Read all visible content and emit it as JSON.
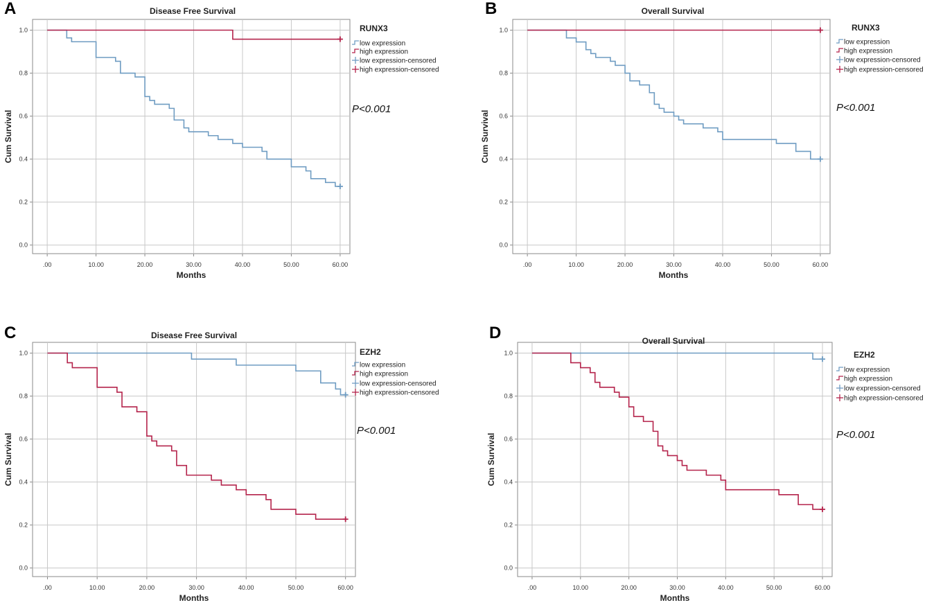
{
  "figure": {
    "axis": {
      "xticks": [
        0,
        10,
        20,
        30,
        40,
        50,
        60
      ],
      "xtick_labels": [
        ".00",
        "10.00",
        "20.00",
        "30.00",
        "40.00",
        "50.00",
        "60.00"
      ],
      "yticks": [
        0,
        0.2,
        0.4,
        0.6,
        0.8,
        1.0
      ],
      "ytick_labels": [
        "0.0",
        "0.2",
        "0.4",
        "0.6",
        "0.8",
        "1.0"
      ],
      "xlabel": "Months",
      "ylabel": "Cum Survival",
      "xlim": [
        -3,
        62
      ],
      "ylim": [
        -0.04,
        1.05
      ]
    },
    "legend_labels": [
      "low expression",
      "high expression",
      "low expression-censored",
      "high expression-censored"
    ],
    "colors": {
      "low": "#6f9cc2",
      "high": "#b4234b",
      "grid": "#c8c8c8",
      "frame": "#8a8a8a"
    }
  },
  "chart_data": [
    {
      "type": "line",
      "panel_letter": "A",
      "title": "Disease Free Survival",
      "legend_title": "RUNX3",
      "pvalue": "P<0.001",
      "xlabel": "Months",
      "ylabel": "Cum Survival",
      "series": [
        {
          "name": "low expression",
          "steps": [
            [
              0,
              1.0
            ],
            [
              4,
              0.964
            ],
            [
              5,
              0.946
            ],
            [
              10,
              0.873
            ],
            [
              14,
              0.855
            ],
            [
              15,
              0.8
            ],
            [
              18,
              0.782
            ],
            [
              20,
              0.691
            ],
            [
              21,
              0.673
            ],
            [
              22,
              0.655
            ],
            [
              25,
              0.636
            ],
            [
              26,
              0.582
            ],
            [
              28,
              0.545
            ],
            [
              29,
              0.527
            ],
            [
              33,
              0.509
            ],
            [
              35,
              0.491
            ],
            [
              38,
              0.473
            ],
            [
              40,
              0.455
            ],
            [
              44,
              0.436
            ],
            [
              45,
              0.4
            ],
            [
              50,
              0.364
            ],
            [
              53,
              0.345
            ],
            [
              54,
              0.309
            ],
            [
              57,
              0.291
            ],
            [
              59,
              0.273
            ],
            [
              60,
              0.273
            ]
          ],
          "censored": [
            [
              60,
              0.273
            ]
          ]
        },
        {
          "name": "high expression",
          "steps": [
            [
              0,
              1.0
            ],
            [
              38,
              0.958
            ],
            [
              60,
              0.958
            ]
          ],
          "censored": [
            [
              60,
              0.958
            ]
          ]
        }
      ]
    },
    {
      "type": "line",
      "panel_letter": "B",
      "title": "Overall Survival",
      "legend_title": "RUNX3",
      "pvalue": "P<0.001",
      "xlabel": "Months",
      "ylabel": "Cum Survival",
      "series": [
        {
          "name": "low expression",
          "steps": [
            [
              0,
              1.0
            ],
            [
              8,
              0.964
            ],
            [
              10,
              0.945
            ],
            [
              12,
              0.909
            ],
            [
              13,
              0.891
            ],
            [
              14,
              0.873
            ],
            [
              17,
              0.855
            ],
            [
              18,
              0.836
            ],
            [
              20,
              0.8
            ],
            [
              21,
              0.764
            ],
            [
              23,
              0.745
            ],
            [
              25,
              0.709
            ],
            [
              26,
              0.655
            ],
            [
              27,
              0.636
            ],
            [
              28,
              0.618
            ],
            [
              30,
              0.6
            ],
            [
              31,
              0.582
            ],
            [
              32,
              0.564
            ],
            [
              36,
              0.545
            ],
            [
              39,
              0.527
            ],
            [
              40,
              0.491
            ],
            [
              51,
              0.473
            ],
            [
              55,
              0.436
            ],
            [
              58,
              0.4
            ],
            [
              60,
              0.4
            ]
          ],
          "censored": [
            [
              60,
              0.4
            ]
          ]
        },
        {
          "name": "high expression",
          "steps": [
            [
              0,
              1.0
            ],
            [
              60,
              1.0
            ]
          ],
          "censored": [
            [
              60,
              1.0
            ]
          ]
        }
      ]
    },
    {
      "type": "line",
      "panel_letter": "C",
      "title": "Disease Free Survival",
      "legend_title": "EZH2",
      "pvalue": "P<0.001",
      "xlabel": "Months",
      "ylabel": "Cum Survival",
      "series": [
        {
          "name": "low expression",
          "steps": [
            [
              0,
              1.0
            ],
            [
              29,
              0.972
            ],
            [
              38,
              0.944
            ],
            [
              50,
              0.917
            ],
            [
              55,
              0.861
            ],
            [
              58,
              0.833
            ],
            [
              59,
              0.806
            ],
            [
              60,
              0.806
            ]
          ],
          "censored": [
            [
              60,
              0.806
            ]
          ]
        },
        {
          "name": "high expression",
          "steps": [
            [
              0,
              1.0
            ],
            [
              4,
              0.955
            ],
            [
              5,
              0.932
            ],
            [
              10,
              0.841
            ],
            [
              14,
              0.818
            ],
            [
              15,
              0.75
            ],
            [
              18,
              0.727
            ],
            [
              20,
              0.614
            ],
            [
              21,
              0.591
            ],
            [
              22,
              0.568
            ],
            [
              25,
              0.545
            ],
            [
              26,
              0.477
            ],
            [
              28,
              0.432
            ],
            [
              33,
              0.409
            ],
            [
              35,
              0.386
            ],
            [
              38,
              0.364
            ],
            [
              40,
              0.341
            ],
            [
              44,
              0.318
            ],
            [
              45,
              0.273
            ],
            [
              50,
              0.25
            ],
            [
              54,
              0.227
            ],
            [
              60,
              0.227
            ]
          ],
          "censored": [
            [
              60,
              0.227
            ]
          ]
        }
      ]
    },
    {
      "type": "line",
      "panel_letter": "D",
      "title": "Overall Survival",
      "legend_title": "EZH2",
      "pvalue": "P<0.001",
      "xlabel": "Months",
      "ylabel": "Cum Survival",
      "series": [
        {
          "name": "low expression",
          "steps": [
            [
              0,
              1.0
            ],
            [
              58,
              0.972
            ],
            [
              60,
              0.972
            ]
          ],
          "censored": [
            [
              60,
              0.972
            ]
          ]
        },
        {
          "name": "high expression",
          "steps": [
            [
              0,
              1.0
            ],
            [
              8,
              0.955
            ],
            [
              10,
              0.932
            ],
            [
              12,
              0.909
            ],
            [
              13,
              0.864
            ],
            [
              14,
              0.841
            ],
            [
              17,
              0.818
            ],
            [
              18,
              0.795
            ],
            [
              20,
              0.75
            ],
            [
              21,
              0.705
            ],
            [
              23,
              0.682
            ],
            [
              25,
              0.636
            ],
            [
              26,
              0.568
            ],
            [
              27,
              0.545
            ],
            [
              28,
              0.523
            ],
            [
              30,
              0.5
            ],
            [
              31,
              0.477
            ],
            [
              32,
              0.455
            ],
            [
              36,
              0.432
            ],
            [
              39,
              0.409
            ],
            [
              40,
              0.364
            ],
            [
              51,
              0.341
            ],
            [
              55,
              0.295
            ],
            [
              58,
              0.273
            ],
            [
              60,
              0.273
            ]
          ],
          "censored": [
            [
              60,
              0.273
            ]
          ]
        }
      ]
    }
  ]
}
